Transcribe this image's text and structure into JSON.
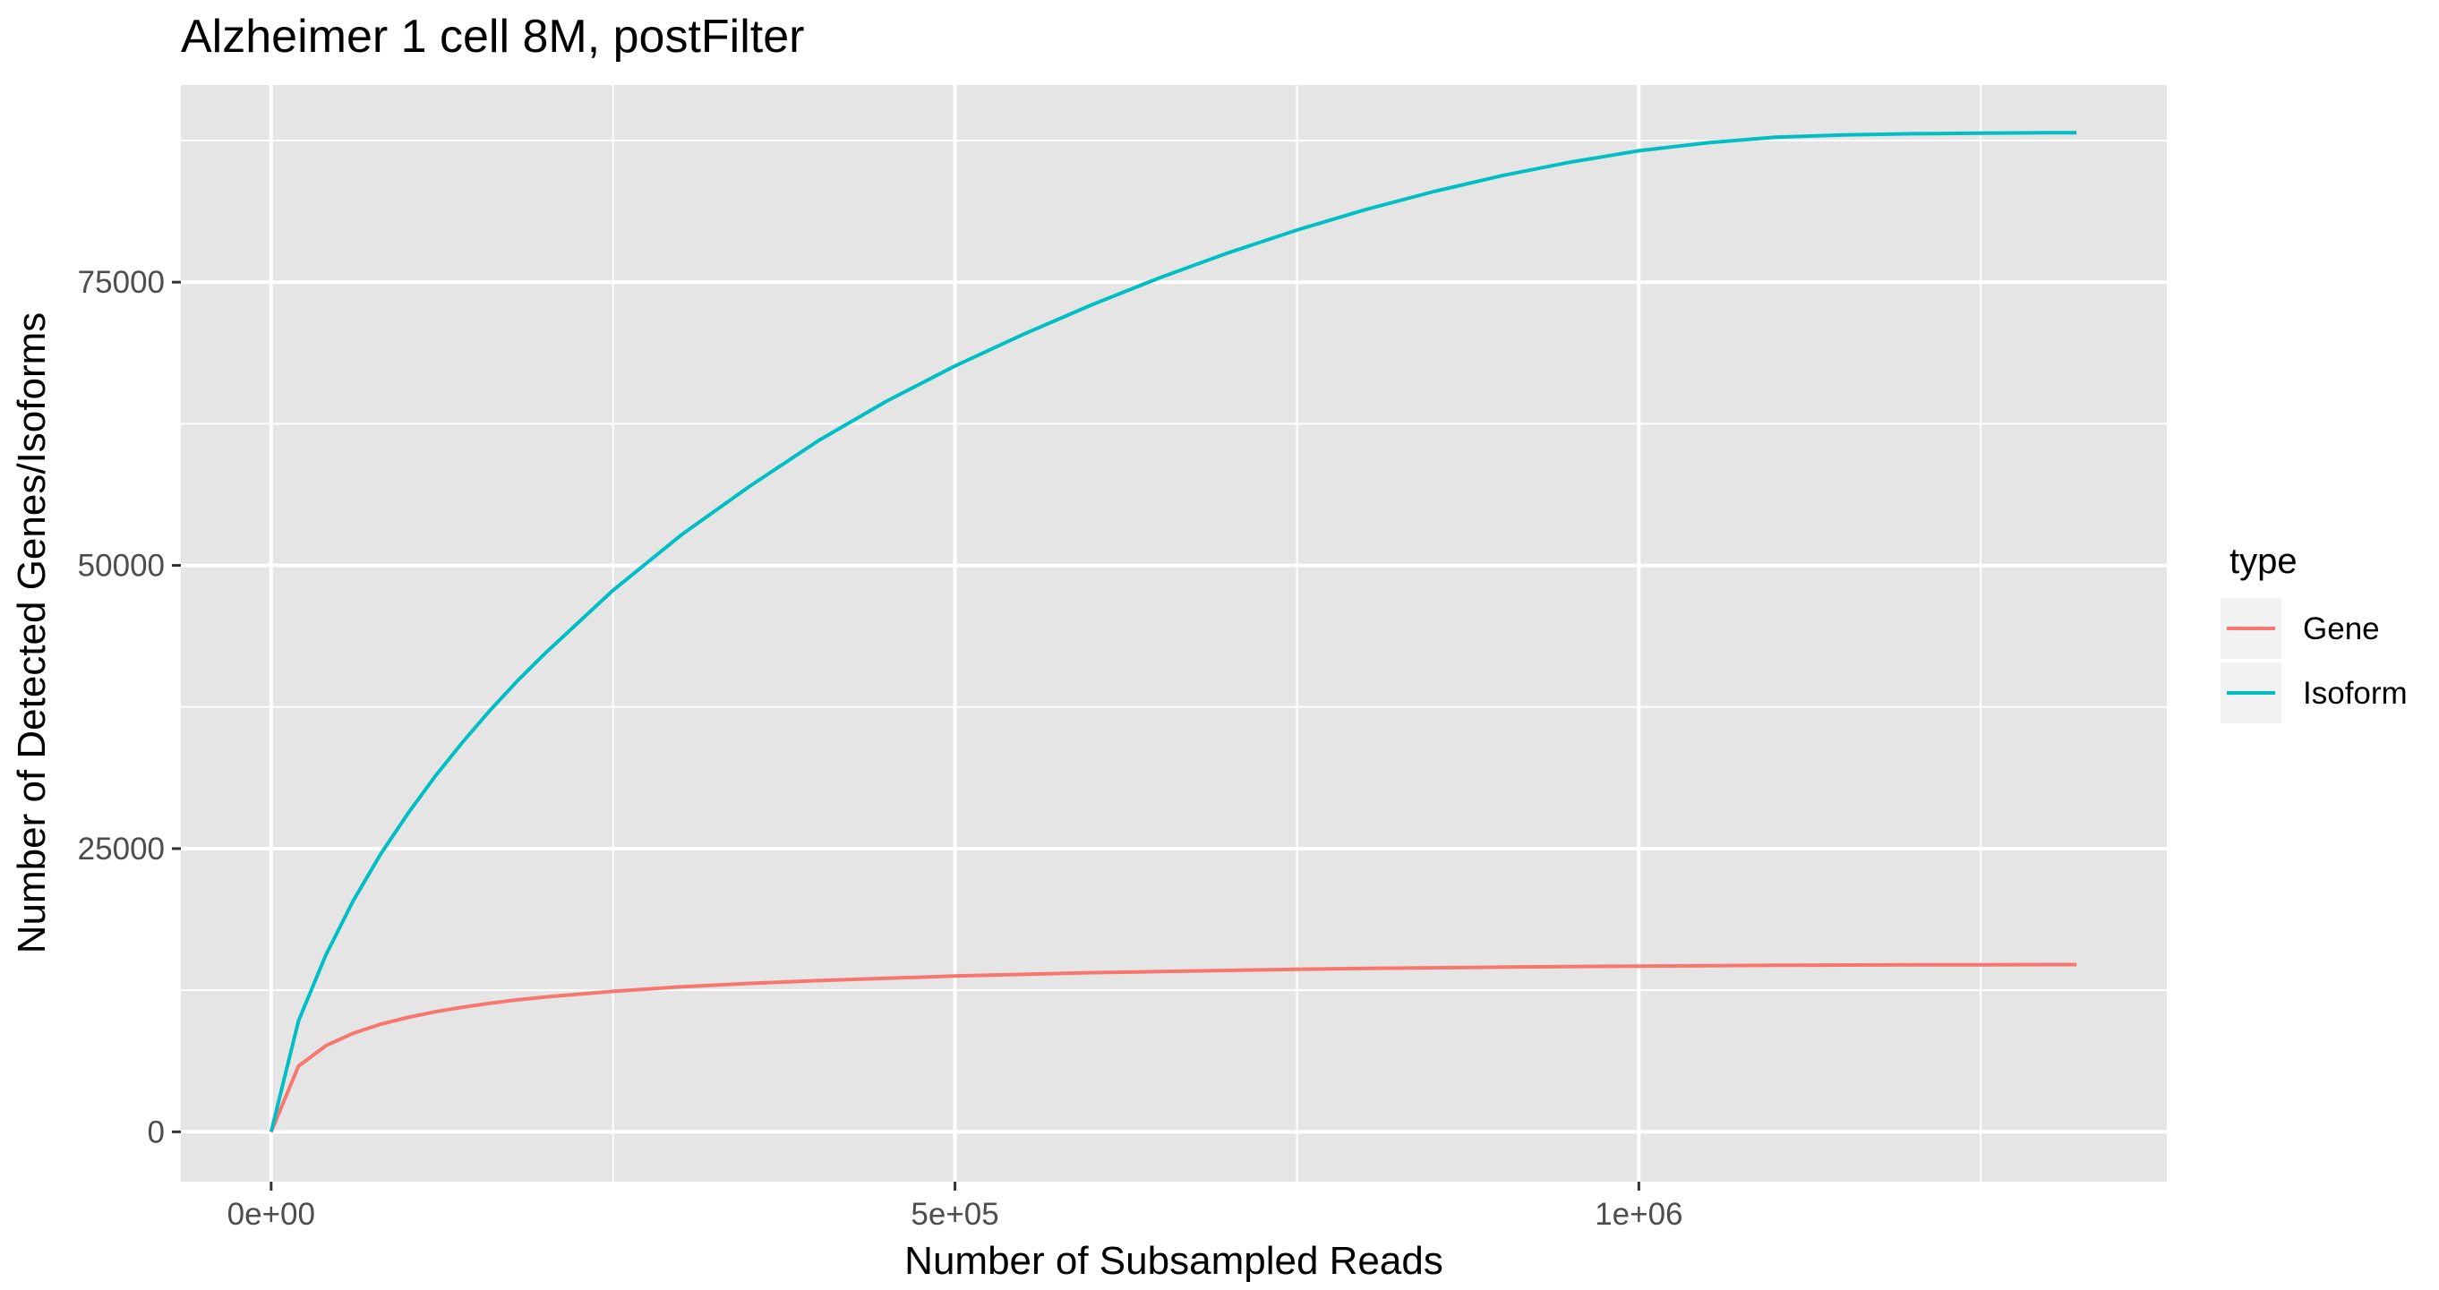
{
  "chart_data": {
    "type": "line",
    "title": "Alzheimer 1 cell 8M, postFilter",
    "xlabel": "Number of Subsampled Reads",
    "ylabel": "Number of Detected Genes/Isoforms",
    "xlim": [
      -66000,
      1386000
    ],
    "ylim": [
      -4400,
      92400
    ],
    "x_ticks": [
      0,
      500000,
      1000000
    ],
    "x_tick_labels": [
      "0e+00",
      "5e+05",
      "1e+06"
    ],
    "y_ticks": [
      0,
      25000,
      50000,
      75000
    ],
    "y_tick_labels": [
      "0",
      "25000",
      "50000",
      "75000"
    ],
    "grid": true,
    "legend": {
      "title": "type",
      "position": "right",
      "entries": [
        "Gene",
        "Isoform"
      ]
    },
    "x": [
      0,
      20000,
      40000,
      60000,
      80000,
      100000,
      120000,
      140000,
      160000,
      180000,
      200000,
      250000,
      300000,
      350000,
      400000,
      450000,
      500000,
      550000,
      600000,
      650000,
      700000,
      750000,
      800000,
      850000,
      900000,
      950000,
      1000000,
      1050000,
      1100000,
      1150000,
      1200000,
      1250000,
      1300000,
      1320000
    ],
    "series": [
      {
        "name": "Gene",
        "color": "#F8766D",
        "values": [
          0,
          5800,
          7600,
          8700,
          9500,
          10100,
          10600,
          11000,
          11350,
          11650,
          11900,
          12400,
          12800,
          13100,
          13350,
          13550,
          13750,
          13900,
          14050,
          14150,
          14250,
          14350,
          14420,
          14480,
          14540,
          14590,
          14630,
          14670,
          14700,
          14720,
          14740,
          14750,
          14760,
          14760
        ]
      },
      {
        "name": "Isoform",
        "color": "#00BFC4",
        "values": [
          0,
          9800,
          15600,
          20400,
          24500,
          28100,
          31400,
          34400,
          37200,
          39800,
          42200,
          47800,
          52700,
          57000,
          61000,
          64500,
          67600,
          70400,
          73000,
          75400,
          77600,
          79600,
          81400,
          83000,
          84400,
          85600,
          86600,
          87300,
          87800,
          88000,
          88100,
          88150,
          88200,
          88200
        ]
      }
    ]
  }
}
